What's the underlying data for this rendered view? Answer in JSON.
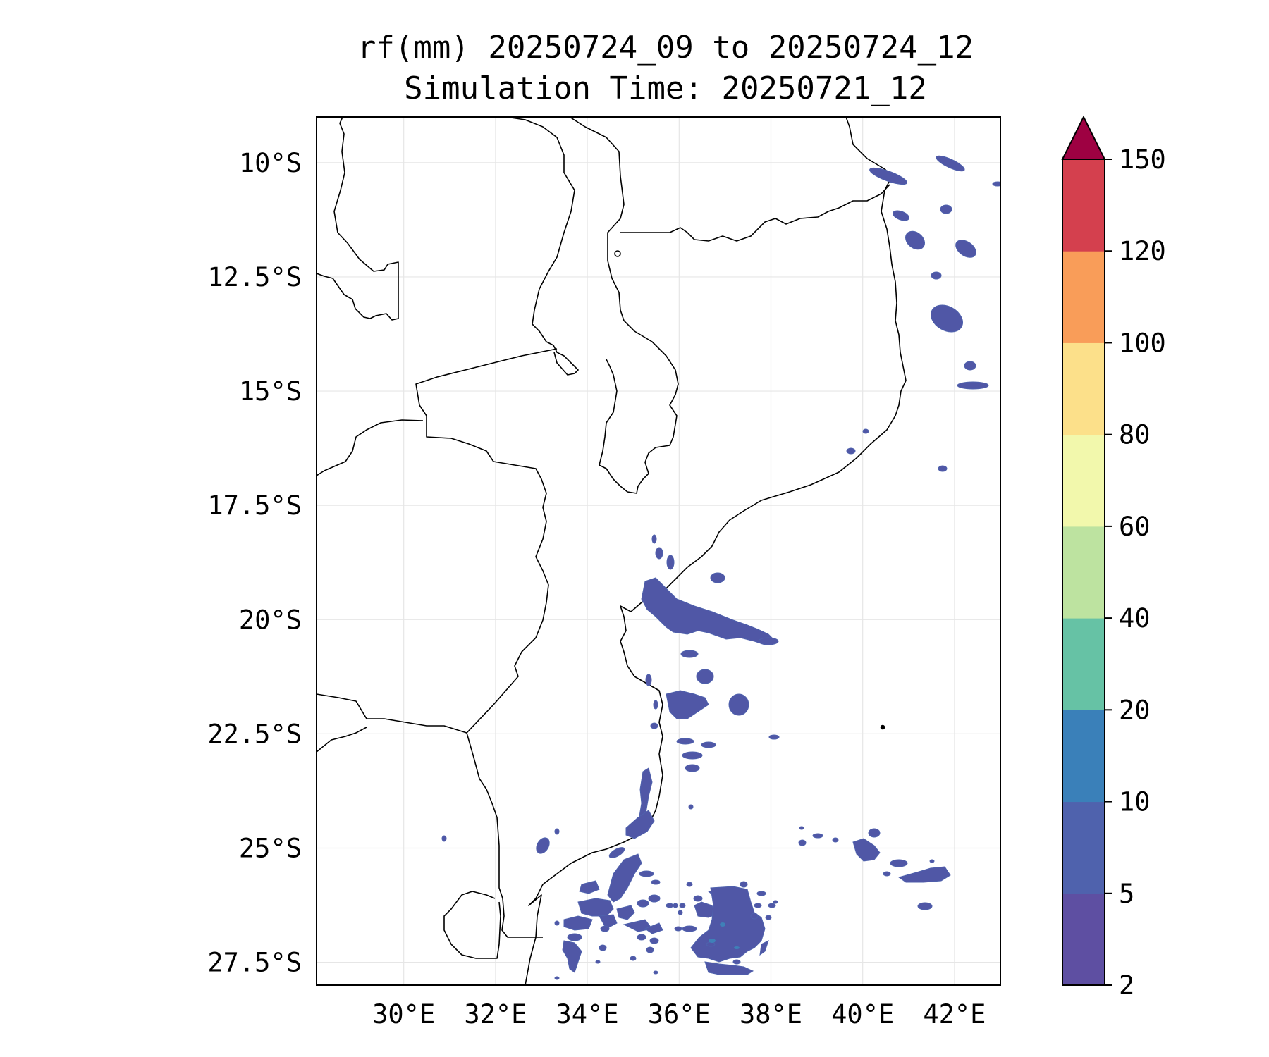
{
  "title": {
    "line1": "rf(mm) 20250724_09 to 20250724_12",
    "line2": "Simulation Time: 20250721_12"
  },
  "map": {
    "lon_range": [
      28.1,
      43.0
    ],
    "lat_range": [
      -9.0,
      -28.0
    ],
    "lat_ticks": [
      {
        "value": -10,
        "label": "10°S"
      },
      {
        "value": -12.5,
        "label": "12.5°S"
      },
      {
        "value": -15,
        "label": "15°S"
      },
      {
        "value": -17.5,
        "label": "17.5°S"
      },
      {
        "value": -20,
        "label": "20°S"
      },
      {
        "value": -22.5,
        "label": "22.5°S"
      },
      {
        "value": -25,
        "label": "25°S"
      },
      {
        "value": -27.5,
        "label": "27.5°S"
      }
    ],
    "lon_ticks": [
      {
        "value": 30,
        "label": "30°E"
      },
      {
        "value": 32,
        "label": "32°E"
      },
      {
        "value": 34,
        "label": "34°E"
      },
      {
        "value": 36,
        "label": "36°E"
      },
      {
        "value": 38,
        "label": "38°E"
      },
      {
        "value": 40,
        "label": "40°E"
      },
      {
        "value": 42,
        "label": "42°E"
      }
    ],
    "gridlines": true,
    "rain_color": "#5057a6",
    "rain_highlight_color": "#3f80b8",
    "boundary_color": "#000000"
  },
  "colorbar": {
    "levels": [
      "2",
      "5",
      "10",
      "20",
      "40",
      "60",
      "80",
      "100",
      "120",
      "150"
    ],
    "colors": [
      "#5e4fa2",
      "#4f62ad",
      "#3a80b9",
      "#66c2a5",
      "#bde3a0",
      "#f2f8ac",
      "#fce08a",
      "#f99d59",
      "#d4404e"
    ],
    "extend_color": "#9e0142",
    "extend": "max"
  }
}
